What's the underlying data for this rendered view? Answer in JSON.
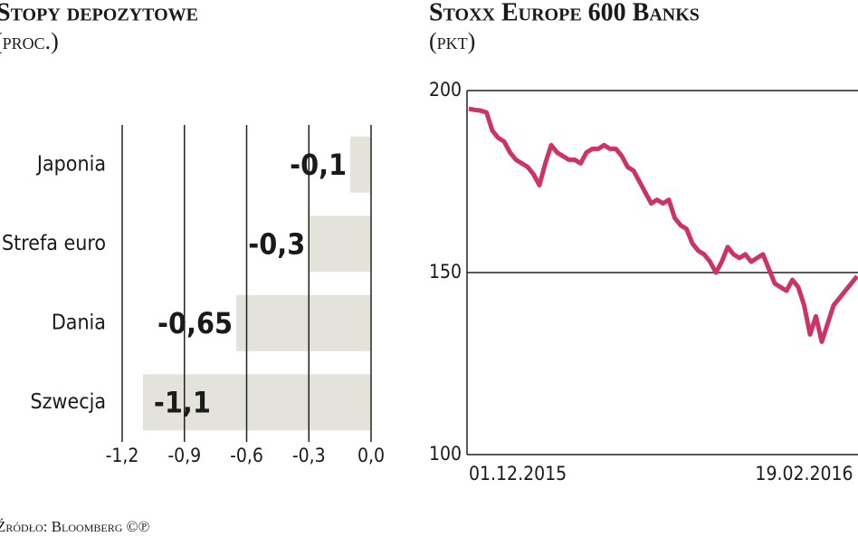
{
  "chart_data": [
    {
      "type": "hbar",
      "title": "Stopy depozytowe",
      "subtitle": "(proc.)",
      "categories": [
        "Japonia",
        "Strefa euro",
        "Dania",
        "Szwecja"
      ],
      "values": [
        -0.1,
        -0.3,
        -0.65,
        -1.1
      ],
      "value_labels": [
        "-0,1",
        "-0,3",
        "-0,65",
        "-1,1"
      ],
      "color": "#e3e3db",
      "xlim": [
        -1.2,
        0.0
      ],
      "xticks": [
        {
          "value": -1.2,
          "label": "-1,2"
        },
        {
          "value": -0.9,
          "label": "-0,9"
        },
        {
          "value": -0.6,
          "label": "-0,6"
        },
        {
          "value": -0.3,
          "label": "-0,3"
        },
        {
          "value": 0.0,
          "label": "0,0"
        }
      ],
      "grid": true
    },
    {
      "type": "line",
      "title": "Stoxx Europe 600 Banks",
      "subtitle": "(pkt)",
      "categories": [
        "01.12.2015",
        null,
        null,
        null,
        null,
        null,
        null,
        null,
        null,
        null,
        null,
        null,
        null,
        null,
        null,
        null,
        null,
        null,
        null,
        null,
        null,
        null,
        null,
        null,
        null,
        null,
        null,
        null,
        null,
        null,
        null,
        null,
        null,
        null,
        null,
        null,
        null,
        null,
        null,
        null,
        null,
        null,
        null,
        null,
        null,
        null,
        null,
        null,
        null,
        null,
        null,
        null,
        null,
        null,
        null,
        null,
        null,
        "19.02.2016",
        null,
        null,
        null,
        null,
        null,
        null,
        null,
        null,
        null
      ],
      "values": [
        195,
        194.7,
        194.5,
        194,
        189,
        187,
        186,
        183,
        181,
        180,
        179,
        177,
        174,
        180,
        185,
        183,
        182,
        181,
        181,
        180,
        183,
        184,
        184,
        185,
        184,
        184,
        182,
        179,
        178,
        175,
        172,
        169,
        170,
        169,
        170,
        165,
        163,
        162,
        158,
        156,
        155,
        153,
        150,
        153,
        157,
        155,
        154,
        155,
        153,
        154,
        155,
        151,
        147,
        146,
        145,
        148,
        146,
        141,
        133,
        138,
        131,
        136,
        141,
        143,
        145,
        147,
        149
      ],
      "color": "#cc3366",
      "ylim": [
        100,
        200
      ],
      "yticks": [
        100,
        150,
        200
      ],
      "grid": true
    }
  ],
  "source": "Źródło: Bloomberg ©℗"
}
